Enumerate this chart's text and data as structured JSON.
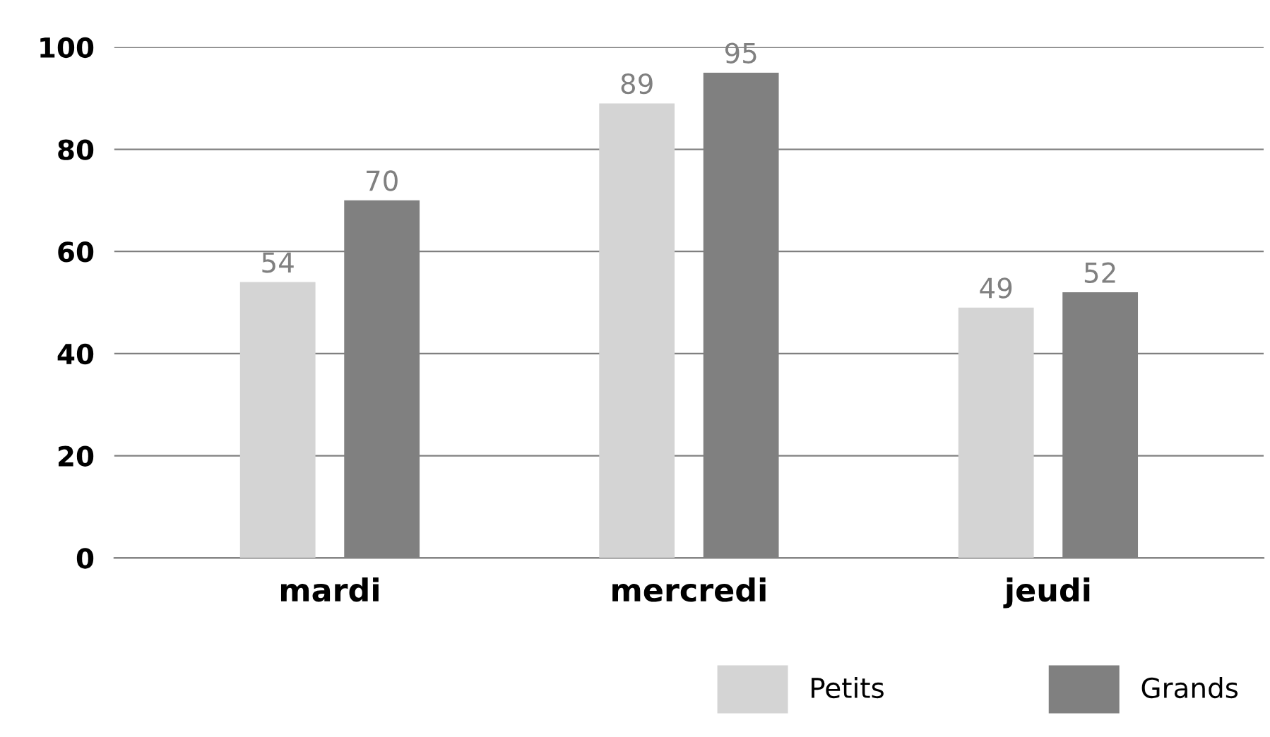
{
  "chart_data": {
    "type": "bar",
    "categories": [
      "mardi",
      "mercredi",
      "jeudi"
    ],
    "series": [
      {
        "name": "Petits",
        "color": "#d4d4d4",
        "values": [
          54,
          89,
          49
        ]
      },
      {
        "name": "Grands",
        "color": "#808080",
        "values": [
          70,
          95,
          52
        ]
      }
    ],
    "ylim": [
      0,
      100
    ],
    "yticks": [
      0,
      20,
      40,
      60,
      80,
      100
    ],
    "grid": "y",
    "data_labels": true,
    "legend": "bottom right"
  }
}
